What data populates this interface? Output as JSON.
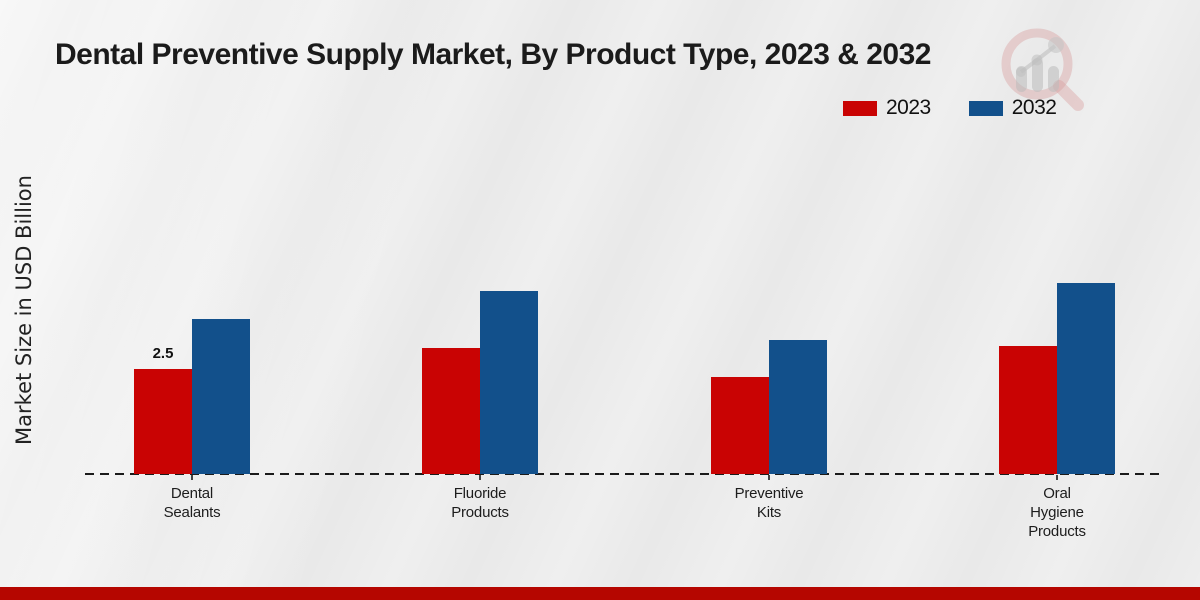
{
  "title": "Dental Preventive Supply Market, By Product Type, 2023 & 2032",
  "ylabel": "Market Size in USD Billion",
  "legend": [
    {
      "label": "2023",
      "color": "#c90303"
    },
    {
      "label": "2032",
      "color": "#12508b"
    }
  ],
  "colors": {
    "series_2023": "#c90303",
    "series_2032": "#12508b",
    "footer_bar": "#b50600",
    "background": "#e9e9e9",
    "axis": "#1b1b1b"
  },
  "chart_data": {
    "type": "bar",
    "title": "Dental Preventive Supply Market, By Product Type, 2023 & 2032",
    "xlabel": "",
    "ylabel": "Market Size in USD Billion",
    "categories": [
      "Dental Sealants",
      "Fluoride Products",
      "Preventive Kits",
      "Oral Hygiene Products"
    ],
    "categories_wrapped": [
      [
        "Dental",
        "Sealants"
      ],
      [
        "Fluoride",
        "Products"
      ],
      [
        "Preventive",
        "Kits"
      ],
      [
        "Oral",
        "Hygiene",
        "Products"
      ]
    ],
    "series": [
      {
        "name": "2023",
        "color": "#c90303",
        "values": [
          2.5,
          3.0,
          2.3,
          3.05
        ]
      },
      {
        "name": "2032",
        "color": "#12508b",
        "values": [
          3.7,
          4.35,
          3.2,
          4.55
        ]
      }
    ],
    "annotations": [
      {
        "series": "2023",
        "category": "Dental Sealants",
        "text": "2.5"
      }
    ],
    "ylim": [
      0,
      5
    ],
    "grid": false,
    "y_axis_ticks_visible": false,
    "baseline_style": "dashed",
    "legend_position": "top-right"
  },
  "watermark": {
    "name": "market-research-magnifier-logo"
  }
}
